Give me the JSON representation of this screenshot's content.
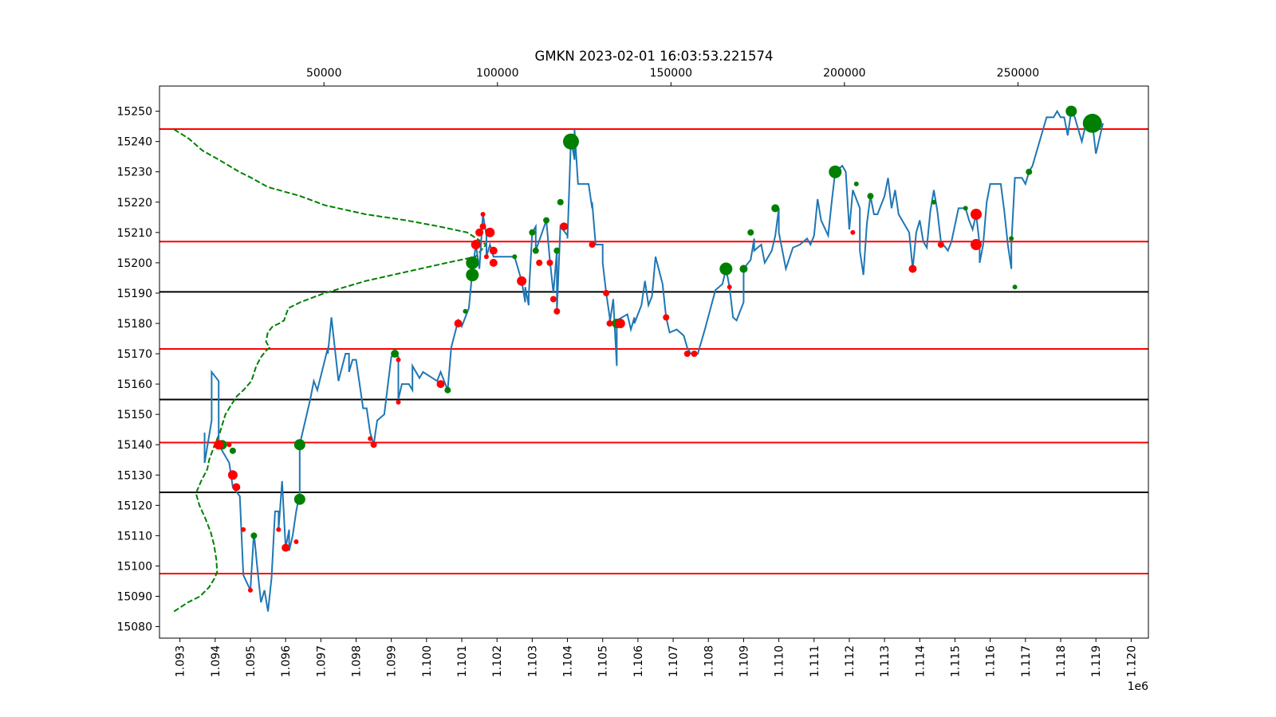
{
  "chart_data": {
    "type": "line",
    "title": "GMKN 2023-02-01 16:03:53.221574",
    "x_offset_label": "1e6",
    "xlim": [
      1.09242,
      1.12049
    ],
    "xticks": [
      1.093,
      1.094,
      1.095,
      1.096,
      1.097,
      1.098,
      1.099,
      {
        "value": 1.1,
        "label": "1.100"
      },
      1.101,
      1.102,
      1.103,
      1.104,
      1.105,
      1.106,
      1.107,
      1.108,
      1.109,
      {
        "value": 1.11,
        "label": "1.110"
      },
      1.111,
      1.112,
      1.113,
      1.114,
      1.115,
      1.116,
      1.117,
      1.118,
      1.119,
      {
        "value": 1.12,
        "label": "1.120"
      }
    ],
    "x2lim": [
      2600,
      287600
    ],
    "x2ticks": [
      50000,
      100000,
      150000,
      200000,
      250000
    ],
    "ylim": [
      15076.2,
      15258.3
    ],
    "yticks": [
      15080,
      15090,
      15100,
      15110,
      15120,
      15130,
      15140,
      15150,
      15160,
      15170,
      15180,
      15190,
      15200,
      15210,
      15220,
      15230,
      15240,
      15250
    ],
    "hlines": [
      {
        "y": 15244.1,
        "color": "#ff0000"
      },
      {
        "y": 15207.0,
        "color": "#ff0000"
      },
      {
        "y": 15171.6,
        "color": "#ff0000"
      },
      {
        "y": 15140.7,
        "color": "#ff0000"
      },
      {
        "y": 15097.5,
        "color": "#ff0000"
      },
      {
        "y": 15190.4,
        "color": "#000000"
      },
      {
        "y": 15154.9,
        "color": "#000000"
      },
      {
        "y": 15124.3,
        "color": "#000000"
      }
    ],
    "price_line": {
      "color": "#1f77b4",
      "x": [
        1.0937,
        1.0937,
        1.0939,
        1.0939,
        1.0941,
        1.0941,
        1.0944,
        1.0945,
        1.0947,
        1.0948,
        1.095,
        1.0951,
        1.0952,
        1.0953,
        1.0954,
        1.0955,
        1.0956,
        1.0957,
        1.0958,
        1.0958,
        1.0959,
        1.096,
        1.0961,
        1.0961,
        1.0962,
        1.0963,
        1.0964,
        1.0964,
        1.0967,
        1.0968,
        1.0969,
        1.0972,
        1.0972,
        1.0973,
        1.0975,
        1.0977,
        1.0978,
        1.0978,
        1.0979,
        1.098,
        1.0982,
        1.0983,
        1.0984,
        1.0985,
        1.0986,
        1.0988,
        1.099,
        1.0991,
        1.0992,
        1.0992,
        1.0993,
        1.0995,
        1.0996,
        1.0996,
        1.0998,
        1.0999,
        1.1003,
        1.1004,
        1.1006,
        1.1007,
        1.1009,
        1.101,
        1.1012,
        1.1013,
        1.1014,
        1.1015,
        1.1016,
        1.1017,
        1.1017,
        1.1018,
        1.1019,
        1.1025,
        1.1027,
        1.1028,
        1.1028,
        1.1029,
        1.1029,
        1.103,
        1.1031,
        1.1031,
        1.1034,
        1.1035,
        1.1036,
        1.1037,
        1.1037,
        1.1038,
        1.104,
        1.104,
        1.1041,
        1.1042,
        1.1042,
        1.1043,
        1.1046,
        1.1047,
        1.1047,
        1.1048,
        1.105,
        1.105,
        1.1051,
        1.1052,
        1.1052,
        1.1053,
        1.1054,
        1.1054,
        1.1057,
        1.1058,
        1.1059,
        1.1059,
        1.1061,
        1.1062,
        1.1063,
        1.1064,
        1.1065,
        1.1067,
        1.1068,
        1.1069,
        1.1071,
        1.1073,
        1.1074,
        1.1075,
        1.1077,
        1.1078,
        1.1079,
        1.1082,
        1.1084,
        1.1085,
        1.1086,
        1.1087,
        1.1088,
        1.109,
        1.109,
        1.1092,
        1.1093,
        1.1093,
        1.1095,
        1.1096,
        1.1098,
        1.1099,
        1.11,
        1.11,
        1.1102,
        1.1104,
        1.1106,
        1.1107,
        1.1108,
        1.1109,
        1.111,
        1.1111,
        1.1112,
        1.1114,
        1.1115,
        1.1116,
        1.1118,
        1.1119,
        1.112,
        1.1121,
        1.1123,
        1.1123,
        1.1124,
        1.1125,
        1.1126,
        1.1127,
        1.1128,
        1.113,
        1.1131,
        1.1132,
        1.1133,
        1.1134,
        1.1137,
        1.1138,
        1.1139,
        1.114,
        1.1141,
        1.1142,
        1.1143,
        1.1144,
        1.1145,
        1.1146,
        1.1148,
        1.1149,
        1.1151,
        1.1153,
        1.1154,
        1.1155,
        1.1156,
        1.1157,
        1.1157,
        1.1158,
        1.1159,
        1.116,
        1.1163,
        1.1164,
        1.1165,
        1.1166,
        1.1166,
        1.1167,
        1.1169,
        1.117,
        1.1171,
        1.1172,
        1.1174,
        1.1174,
        1.1176,
        1.1178,
        1.1179,
        1.118,
        1.1181,
        1.1182,
        1.1183,
        1.1184,
        1.1186,
        1.1187,
        1.1188,
        1.1189,
        1.119,
        1.1192
      ],
      "y": [
        15144,
        15134,
        15148,
        15164,
        15161,
        15140,
        15134,
        15126,
        15123,
        15097,
        15092,
        15111,
        15099,
        15088,
        15092,
        15085,
        15096,
        15118,
        15118,
        15112,
        15128,
        15106,
        15112,
        15105,
        15110,
        15118,
        15124,
        15140,
        15155,
        15161,
        15158,
        15172,
        15170,
        15182,
        15161,
        15170,
        15170,
        15164,
        15168,
        15168,
        15152,
        15152,
        15144,
        15140,
        15148,
        15150,
        15169,
        15170,
        15169,
        15155,
        15160,
        15160,
        15158,
        15166,
        15162,
        15164,
        15161,
        15164,
        15158,
        15172,
        15181,
        15179,
        15185,
        15197,
        15206,
        15198,
        15216,
        15209,
        15202,
        15206,
        15202,
        15202,
        15194,
        15187,
        15192,
        15186,
        15189,
        15210,
        15212,
        15204,
        15214,
        15201,
        15190,
        15204,
        15184,
        15212,
        15209,
        15208,
        15241,
        15234,
        15244,
        15226,
        15226,
        15218,
        15220,
        15206,
        15206,
        15200,
        15190,
        15182,
        15180,
        15188,
        15166,
        15181,
        15183,
        15178,
        15182,
        15180,
        15186,
        15194,
        15186,
        15189,
        15202,
        15193,
        15182,
        15177,
        15178,
        15176,
        15172,
        15170,
        15170,
        15174,
        15178,
        15191,
        15193,
        15198,
        15192,
        15182,
        15181,
        15187,
        15198,
        15201,
        15208,
        15204,
        15206,
        15200,
        15204,
        15209,
        15218,
        15210,
        15198,
        15205,
        15206,
        15207,
        15208,
        15206,
        15209,
        15221,
        15214,
        15209,
        15220,
        15230,
        15232,
        15230,
        15211,
        15224,
        15218,
        15204,
        15196,
        15213,
        15222,
        15216,
        15216,
        15222,
        15228,
        15218,
        15224,
        15216,
        15210,
        15198,
        15210,
        15214,
        15207,
        15205,
        15217,
        15224,
        15217,
        15207,
        15204,
        15207,
        15218,
        15218,
        15214,
        15211,
        15216,
        15206,
        15200,
        15206,
        15220,
        15226,
        15226,
        15217,
        15206,
        15198,
        15206,
        15228,
        15228,
        15226,
        15230,
        15232,
        15240,
        15240,
        15248,
        15248,
        15250,
        15248,
        15248,
        15242,
        15250,
        15248,
        15240,
        15245,
        15246,
        15246,
        15236,
        15246
      ]
    },
    "volume_profile": {
      "color": "#008000",
      "axis": "x2",
      "x": [
        6800,
        10800,
        14300,
        16900,
        18500,
        19200,
        19000,
        18300,
        17400,
        15700,
        14100,
        13100,
        14600,
        16400,
        16900,
        18500,
        20000,
        21600,
        23200,
        24900,
        26800,
        29100,
        30500,
        31900,
        33300,
        34300,
        33300,
        33800,
        35200,
        37100,
        38500,
        39700,
        43200,
        50200,
        62000,
        73700,
        85400,
        93700,
        96700,
        91300,
        83100,
        73700,
        62000,
        50200,
        43200,
        33800,
        29100,
        25600,
        19700,
        15000,
        11000,
        6800
      ],
      "y": [
        15085,
        15088,
        15090,
        15093,
        15096,
        15098,
        15102,
        15107,
        15111,
        15116,
        15120,
        15124,
        15128,
        15132,
        15135,
        15140,
        15144,
        15150,
        15153,
        15156,
        15158,
        15161,
        15166,
        15169,
        15171,
        15172,
        15174,
        15177,
        15179,
        15180,
        15181,
        15185,
        15187,
        15190,
        15194,
        15197,
        15200,
        15202,
        15206,
        15210,
        15212,
        15214,
        15216,
        15219,
        15222,
        15225,
        15228,
        15230,
        15234,
        15237,
        15241,
        15244
      ]
    },
    "buys": {
      "color": "#008000",
      "x": [
        1.0942,
        1.0945,
        1.0951,
        1.0964,
        1.0964,
        1.0991,
        1.1006,
        1.1011,
        1.1013,
        1.1013,
        1.1025,
        1.103,
        1.1031,
        1.1034,
        1.1037,
        1.1038,
        1.1041,
        1.1054,
        1.1085,
        1.109,
        1.1092,
        1.1099,
        1.1116,
        1.1122,
        1.1126,
        1.1144,
        1.1153,
        1.1166,
        1.1167,
        1.1171,
        1.1183,
        1.1189
      ],
      "y": [
        15140,
        15138,
        15110,
        15140,
        15122,
        15170,
        15158,
        15184,
        15200,
        15196,
        15202,
        15210,
        15204,
        15214,
        15204,
        15220,
        15240,
        15180,
        15198,
        15198,
        15210,
        15218,
        15230,
        15226,
        15222,
        15220,
        15218,
        15208,
        15192,
        15230,
        15250,
        15246
      ],
      "sizes": [
        6,
        4,
        4,
        7,
        7,
        5,
        4,
        3,
        8,
        8,
        3,
        4,
        4,
        4,
        4,
        4,
        10,
        6,
        8,
        5,
        4,
        5,
        8,
        3,
        4,
        3,
        3,
        3,
        3,
        4,
        7,
        12
      ]
    },
    "sells": {
      "color": "#ff0000",
      "x": [
        1.0941,
        1.0944,
        1.0945,
        1.0946,
        1.0948,
        1.095,
        1.0958,
        1.096,
        1.0963,
        1.0984,
        1.0985,
        1.0992,
        1.0992,
        1.1004,
        1.1009,
        1.1014,
        1.1015,
        1.1016,
        1.1016,
        1.1017,
        1.1018,
        1.1019,
        1.1019,
        1.1027,
        1.1032,
        1.1035,
        1.1036,
        1.1037,
        1.1039,
        1.1047,
        1.1051,
        1.1052,
        1.1055,
        1.1068,
        1.1074,
        1.1076,
        1.1086,
        1.1121,
        1.1138,
        1.1146,
        1.1156,
        1.1156
      ],
      "y": [
        15140,
        15140,
        15130,
        15126,
        15112,
        15092,
        15112,
        15106,
        15108,
        15142,
        15140,
        15168,
        15154,
        15160,
        15180,
        15206,
        15210,
        15212,
        15216,
        15202,
        15210,
        15200,
        15204,
        15194,
        15200,
        15200,
        15188,
        15184,
        15212,
        15206,
        15190,
        15180,
        15180,
        15182,
        15170,
        15170,
        15192,
        15210,
        15198,
        15206,
        15216,
        15206
      ],
      "sizes": [
        6,
        3,
        6,
        5,
        3,
        3,
        3,
        5,
        3,
        3,
        4,
        3,
        3,
        5,
        5,
        6,
        5,
        4,
        3,
        3,
        6,
        5,
        5,
        6,
        4,
        4,
        4,
        4,
        5,
        4,
        4,
        4,
        6,
        4,
        4,
        4,
        3,
        3,
        5,
        4,
        7,
        7
      ]
    }
  }
}
